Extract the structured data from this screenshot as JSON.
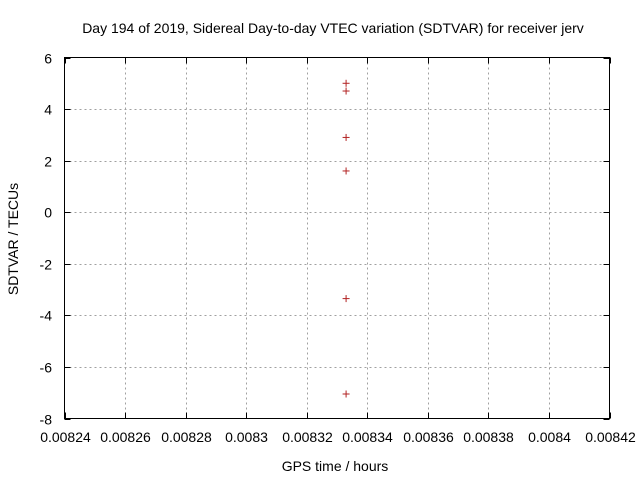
{
  "chart_data": {
    "type": "scatter",
    "title": "Day 194 of 2019, Sidereal Day-to-day VTEC variation (SDTVAR) for receiver jerv",
    "xlabel": "GPS time / hours",
    "ylabel": "SDTVAR / TECUs",
    "xlim": [
      0.00824,
      0.00842
    ],
    "ylim": [
      -8,
      6
    ],
    "xticks": [
      0.00824,
      0.00826,
      0.00828,
      0.0083,
      0.00832,
      0.00834,
      0.00836,
      0.00838,
      0.0084,
      0.00842
    ],
    "xtick_labels": [
      "0.00824",
      "0.00826",
      "0.00828",
      "0.0083",
      "0.00832",
      "0.00834",
      "0.00836",
      "0.00838",
      "0.0084",
      "0.00842"
    ],
    "yticks": [
      -8,
      -6,
      -4,
      -2,
      0,
      2,
      4,
      6
    ],
    "ytick_labels": [
      "-8",
      "-6",
      "-4",
      "-2",
      "0",
      "2",
      "4",
      "6"
    ],
    "grid": true,
    "marker": "+",
    "marker_color": "#b22222",
    "series": [
      {
        "points": [
          {
            "x": 0.008333,
            "y": 5.0
          },
          {
            "x": 0.008333,
            "y": 4.7
          },
          {
            "x": 0.008333,
            "y": 2.9
          },
          {
            "x": 0.008333,
            "y": 1.6
          },
          {
            "x": 0.008333,
            "y": -3.35
          },
          {
            "x": 0.008333,
            "y": -7.05
          }
        ]
      }
    ]
  }
}
